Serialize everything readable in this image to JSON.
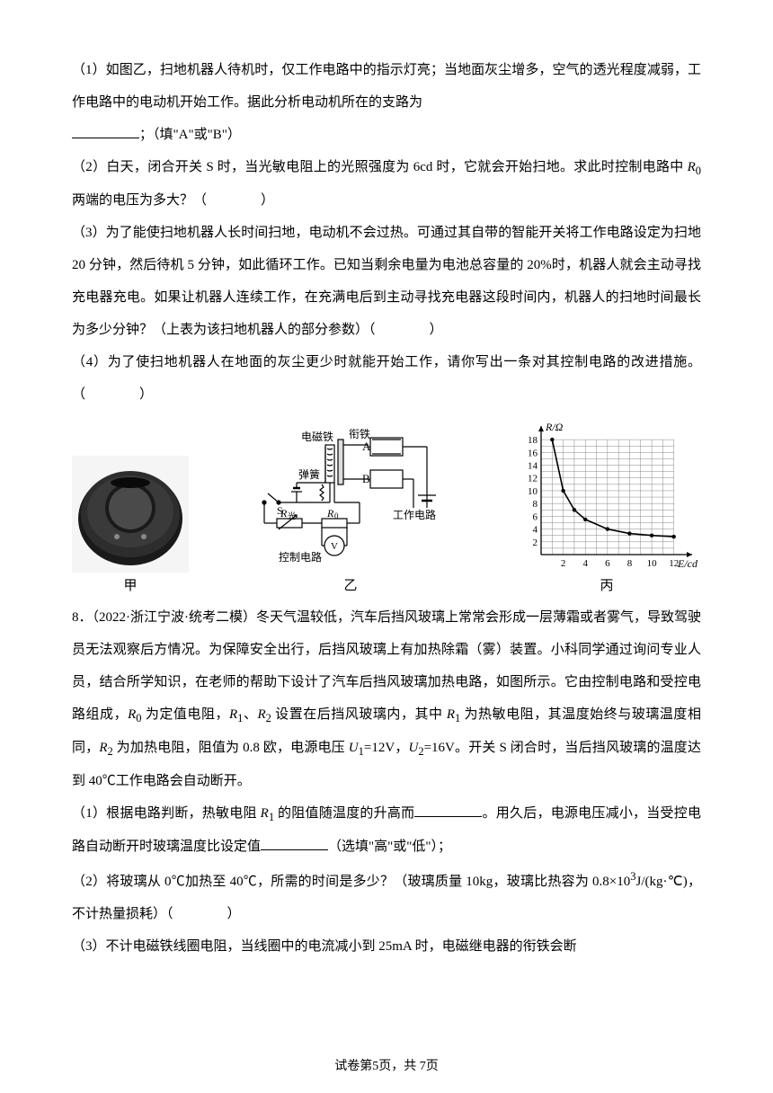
{
  "q7": {
    "part1": "（1）如图乙，扫地机器人待机时，仅工作电路中的指示灯亮；当地面灰尘增多，空气的透光程度减弱，工作电路中的电动机开始工作。据此分析电动机所在的支路为",
    "part1_suffix": "；（填\"A\"或\"B\"）",
    "part2_a": "（2）白天，闭合开关 S 时，当光敏电阻上的光照强度为 6cd 时，它就会开始扫地。求此时控制电路中 ",
    "part2_R0": "R",
    "part2_R0_sub": "0",
    "part2_b": " 两端的电压为多大？（　　　　）",
    "part3": "（3）为了能使扫地机器人长时间扫地，电动机不会过热。可通过其自带的智能开关将工作电路设定为扫地 20 分钟，然后待机 5 分钟，如此循环工作。已知当剩余电量为电池总容量的 20%时，机器人就会主动寻找充电器充电。如果让机器人连续工作，在充满电后到主动寻找充电器这段时间内，机器人的扫地时间最长为多少分钟？（上表为该扫地机器人的部分参数）（　　　　）",
    "part4": "（4）为了使扫地机器人在地面的灰尘更少时就能开始工作，请你写出一条对其控制电路的改进措施。（　　　　）"
  },
  "figures": {
    "labels": {
      "a": "甲",
      "b": "乙",
      "c": "丙"
    },
    "circuit": {
      "electromagnet": "电磁铁",
      "armature": "衔铁",
      "spring": "弹簧",
      "switch": "S",
      "R_light": "R",
      "R_light_sub": "光",
      "R0": "R",
      "R0_sub": "0",
      "voltmeter": "V",
      "work_circuit": "工作电路",
      "control_circuit": "控制电路",
      "A": "A",
      "B": "B"
    },
    "graph": {
      "y_label": "R/Ω",
      "x_label": "E/cd",
      "y_ticks": [
        2,
        4,
        6,
        8,
        10,
        12,
        14,
        16,
        18
      ],
      "x_ticks": [
        2,
        4,
        6,
        8,
        10,
        12
      ],
      "points": [
        [
          1,
          18
        ],
        [
          2,
          10
        ],
        [
          3,
          7
        ],
        [
          4,
          5.5
        ],
        [
          6,
          4
        ],
        [
          8,
          3.3
        ],
        [
          10,
          3
        ],
        [
          12,
          2.8
        ]
      ],
      "curve_color": "#000000",
      "grid_color": "#888888",
      "background": "#ffffff"
    }
  },
  "q8": {
    "intro_a": "8．（2022·浙江宁波·统考二模）冬天气温较低，汽车后挡风玻璃上常常会形成一层薄霜或者雾气，导致驾驶员无法观察后方情况。为保障安全出行，后挡风玻璃上有加热除霜（雾）装置。小科同学通过询问专业人员，结合所学知识，在老师的帮助下设计了汽车后挡风玻璃加热电路，如图所示。它由控制电路和受控电路组成，",
    "R0": "R",
    "R0_sub": "0",
    "intro_b": " 为定值电阻，",
    "R1": "R",
    "R1_sub": "1",
    "intro_c": "、",
    "R2": "R",
    "R2_sub": "2",
    "intro_d": " 设置在后挡风玻璃内，其中 ",
    "R1b": "R",
    "R1b_sub": "1",
    "intro_e": " 为热敏电阻，其温度始终与玻璃温度相同，",
    "R2b": "R",
    "R2b_sub": "2",
    "intro_f": " 为加热电阻，阻值为 0.8 欧，电源电压 ",
    "U1": "U",
    "U1_sub": "1",
    "intro_g": "=12V，",
    "U2": "U",
    "U2_sub": "2",
    "intro_h": "=16V。开关 S 闭合时，当后挡风玻璃的温度达到 40℃工作电路会自动断开。",
    "part1_a": "（1）根据电路判断，热敏电阻 ",
    "p1_R1": "R",
    "p1_R1_sub": "1",
    "part1_b": " 的阻值随温度的升高而",
    "part1_c": "。用久后，电源电压减小，当受控电路自动断开时玻璃温度比设定值",
    "part1_d": "（选填\"高\"或\"低\"）；",
    "part2_a": "（2）将玻璃从 0℃加热至 40℃，所需的时间是多少？（玻璃质量 10kg，玻璃比热容为 0.8×10",
    "exp3": "3",
    "part2_b": "J/(kg·℃)，不计热量损耗）（　　　　）",
    "part3": "（3）不计电磁铁线圈电阻，当线圈中的电流减小到 25mA 时，电磁继电器的衔铁会断"
  },
  "footer": {
    "text": "试卷第5页，共 7页"
  }
}
